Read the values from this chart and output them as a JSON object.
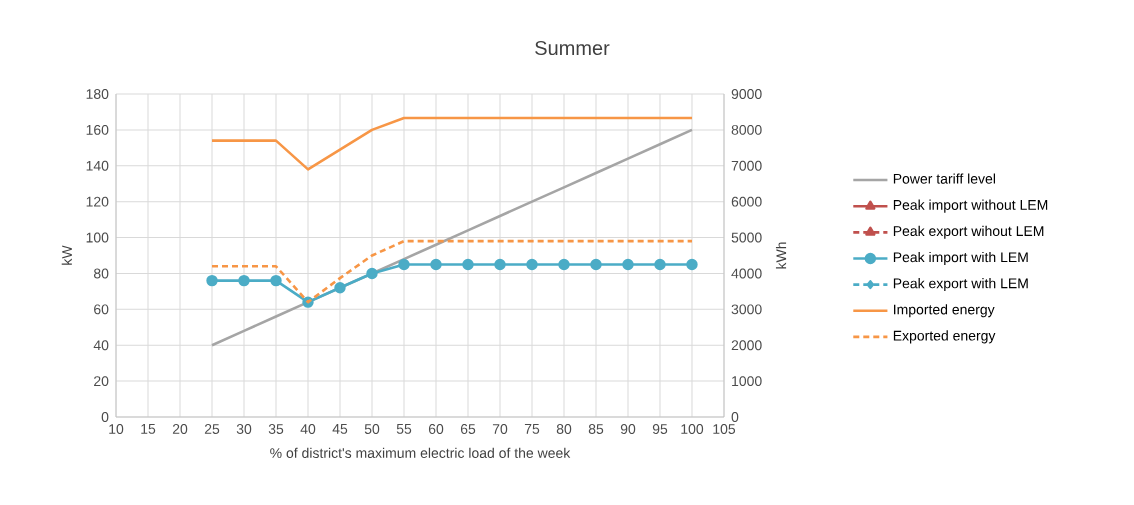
{
  "chart_data": {
    "type": "line",
    "title": "Summer",
    "xlabel": "% of district's maximum electric load of the week",
    "ylabel": "kW",
    "y2label": "kWh",
    "x": [
      25,
      30,
      35,
      40,
      45,
      50,
      55,
      60,
      65,
      70,
      75,
      80,
      85,
      90,
      95,
      100
    ],
    "xlim": [
      10,
      105
    ],
    "xticks": [
      10,
      15,
      20,
      25,
      30,
      35,
      40,
      45,
      50,
      55,
      60,
      65,
      70,
      75,
      80,
      85,
      90,
      95,
      100,
      105
    ],
    "ylim": [
      0,
      180
    ],
    "yticks": [
      0,
      20,
      40,
      60,
      80,
      100,
      120,
      140,
      160,
      180
    ],
    "y2lim": [
      0,
      9000
    ],
    "y2ticks": [
      0,
      1000,
      2000,
      3000,
      4000,
      5000,
      6000,
      7000,
      8000,
      9000
    ],
    "grid": true,
    "legend": "right",
    "series": [
      {
        "name": "Power tariff level",
        "color": "#a5a5a5",
        "marker": "none",
        "line_style": "solid",
        "values": [
          40,
          48,
          56,
          64,
          72,
          80,
          88,
          96,
          104,
          112,
          120,
          128,
          136,
          144,
          152,
          160
        ]
      },
      {
        "name": "Peak import without LEM",
        "color": "#c0504d",
        "marker": "triangle",
        "line_style": "solid",
        "values": [
          null,
          null,
          null,
          null,
          null,
          null,
          null,
          null,
          null,
          null,
          null,
          null,
          null,
          null,
          null,
          null
        ]
      },
      {
        "name": "Peak export wihout LEM",
        "color": "#c0504d",
        "marker": "triangle",
        "line_style": "dashed",
        "values": [
          null,
          null,
          null,
          null,
          null,
          null,
          null,
          null,
          null,
          null,
          null,
          null,
          null,
          null,
          null,
          null
        ]
      },
      {
        "name": "Peak import with LEM",
        "color": "#4bacc6",
        "marker": "circle",
        "line_style": "solid",
        "values": [
          76,
          76,
          76,
          64,
          72,
          80,
          85,
          85,
          85,
          85,
          85,
          85,
          85,
          85,
          85,
          85
        ]
      },
      {
        "name": "Peak export with LEM",
        "color": "#4bacc6",
        "marker": "diamond",
        "line_style": "dashed",
        "values": [
          null,
          null,
          null,
          null,
          null,
          null,
          null,
          null,
          null,
          null,
          null,
          null,
          null,
          null,
          null,
          null
        ]
      },
      {
        "name": "Imported energy",
        "color": "#f79646",
        "marker": "none",
        "line_style": "solid",
        "axis": "y2",
        "values": [
          7700,
          7700,
          7700,
          6900,
          7450,
          8000,
          8330,
          8330,
          8330,
          8330,
          8330,
          8330,
          8330,
          8330,
          8330,
          8330
        ]
      },
      {
        "name": "Exported energy",
        "color": "#f79646",
        "marker": "none",
        "line_style": "dashed",
        "axis": "y2",
        "values": [
          4200,
          4200,
          4200,
          3200,
          3870,
          4500,
          4900,
          4900,
          4900,
          4900,
          4900,
          4900,
          4900,
          4900,
          4900,
          4900
        ]
      }
    ]
  }
}
